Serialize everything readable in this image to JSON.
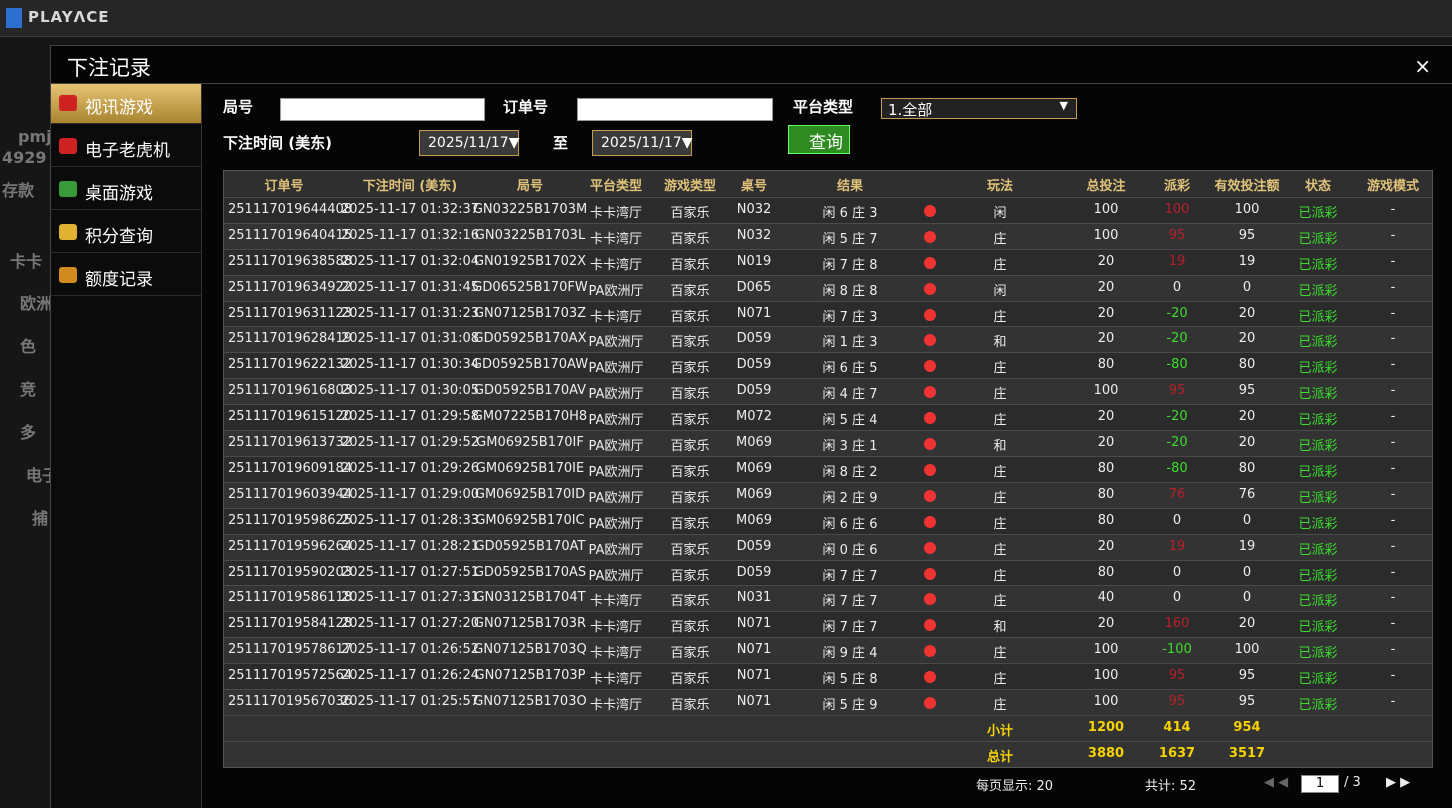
{
  "header": {
    "logo": "PLAYΛCE"
  },
  "background": {
    "fragments": [
      "pmj",
      "4929",
      "存款",
      "卡卡",
      "欧洲",
      "色",
      "竞",
      "多",
      "电子",
      "捕"
    ]
  },
  "modal": {
    "title": "下注记录",
    "close": "×"
  },
  "menu": [
    "视讯游戏",
    "电子老虎机",
    "桌面游戏",
    "积分查询",
    "额度记录"
  ],
  "filters": {
    "round_label": "局号",
    "order_label": "订单号",
    "platform_label": "平台类型",
    "platform_value": "1.全部",
    "time_label": "下注时间 (美东)",
    "date_from": "2025/11/17",
    "to": "至",
    "date_to": "2025/11/17",
    "query": "查询"
  },
  "table": {
    "columns": [
      "订单号",
      "下注时间 (美东)",
      "局号",
      "平台类型",
      "游戏类型",
      "桌号",
      "结果",
      "玩法",
      "总投注",
      "派彩",
      "有效投注额",
      "状态",
      "游戏模式"
    ],
    "rows": [
      [
        "251117019644408",
        "2025-11-17 01:32:37",
        "GN03225B1703M",
        "卡卡湾厅",
        "百家乐",
        "N032",
        "闲 6 庄 3",
        "闲",
        "100",
        "100",
        "100",
        "已派彩",
        "-"
      ],
      [
        "251117019640415",
        "2025-11-17 01:32:16",
        "GN03225B1703L",
        "卡卡湾厅",
        "百家乐",
        "N032",
        "闲 5 庄 7",
        "庄",
        "100",
        "95",
        "95",
        "已派彩",
        "-"
      ],
      [
        "251117019638588",
        "2025-11-17 01:32:04",
        "GN01925B1702X",
        "卡卡湾厅",
        "百家乐",
        "N019",
        "闲 7 庄 8",
        "庄",
        "20",
        "19",
        "19",
        "已派彩",
        "-"
      ],
      [
        "251117019634922",
        "2025-11-17 01:31:45",
        "GD06525B170FW",
        "PA欧洲厅",
        "百家乐",
        "D065",
        "闲 8 庄 8",
        "闲",
        "20",
        "0",
        "0",
        "已派彩",
        "-"
      ],
      [
        "251117019631123",
        "2025-11-17 01:31:23",
        "GN07125B1703Z",
        "卡卡湾厅",
        "百家乐",
        "N071",
        "闲 7 庄 3",
        "庄",
        "20",
        "-20",
        "20",
        "已派彩",
        "-"
      ],
      [
        "251117019628419",
        "2025-11-17 01:31:08",
        "GD05925B170AX",
        "PA欧洲厅",
        "百家乐",
        "D059",
        "闲 1 庄 3",
        "和",
        "20",
        "-20",
        "20",
        "已派彩",
        "-"
      ],
      [
        "251117019622132",
        "2025-11-17 01:30:34",
        "GD05925B170AW",
        "PA欧洲厅",
        "百家乐",
        "D059",
        "闲 6 庄 5",
        "庄",
        "80",
        "-80",
        "80",
        "已派彩",
        "-"
      ],
      [
        "251117019616803",
        "2025-11-17 01:30:05",
        "GD05925B170AV",
        "PA欧洲厅",
        "百家乐",
        "D059",
        "闲 4 庄 7",
        "庄",
        "100",
        "95",
        "95",
        "已派彩",
        "-"
      ],
      [
        "251117019615120",
        "2025-11-17 01:29:58",
        "GM07225B170H8",
        "PA欧洲厅",
        "百家乐",
        "M072",
        "闲 5 庄 4",
        "庄",
        "20",
        "-20",
        "20",
        "已派彩",
        "-"
      ],
      [
        "251117019613732",
        "2025-11-17 01:29:52",
        "GM06925B170IF",
        "PA欧洲厅",
        "百家乐",
        "M069",
        "闲 3 庄 1",
        "和",
        "20",
        "-20",
        "20",
        "已派彩",
        "-"
      ],
      [
        "251117019609184",
        "2025-11-17 01:29:26",
        "GM06925B170IE",
        "PA欧洲厅",
        "百家乐",
        "M069",
        "闲 8 庄 2",
        "庄",
        "80",
        "-80",
        "80",
        "已派彩",
        "-"
      ],
      [
        "251117019603944",
        "2025-11-17 01:29:00",
        "GM06925B170ID",
        "PA欧洲厅",
        "百家乐",
        "M069",
        "闲 2 庄 9",
        "庄",
        "80",
        "76",
        "76",
        "已派彩",
        "-"
      ],
      [
        "251117019598625",
        "2025-11-17 01:28:33",
        "GM06925B170IC",
        "PA欧洲厅",
        "百家乐",
        "M069",
        "闲 6 庄 6",
        "庄",
        "80",
        "0",
        "0",
        "已派彩",
        "-"
      ],
      [
        "251117019596264",
        "2025-11-17 01:28:21",
        "GD05925B170AT",
        "PA欧洲厅",
        "百家乐",
        "D059",
        "闲 0 庄 6",
        "庄",
        "20",
        "19",
        "19",
        "已派彩",
        "-"
      ],
      [
        "251117019590203",
        "2025-11-17 01:27:51",
        "GD05925B170AS",
        "PA欧洲厅",
        "百家乐",
        "D059",
        "闲 7 庄 7",
        "庄",
        "80",
        "0",
        "0",
        "已派彩",
        "-"
      ],
      [
        "251117019586118",
        "2025-11-17 01:27:31",
        "GN03125B1704T",
        "卡卡湾厅",
        "百家乐",
        "N031",
        "闲 7 庄 7",
        "庄",
        "40",
        "0",
        "0",
        "已派彩",
        "-"
      ],
      [
        "251117019584128",
        "2025-11-17 01:27:20",
        "GN07125B1703R",
        "卡卡湾厅",
        "百家乐",
        "N071",
        "闲 7 庄 7",
        "和",
        "20",
        "160",
        "20",
        "已派彩",
        "-"
      ],
      [
        "251117019578617",
        "2025-11-17 01:26:52",
        "GN07125B1703Q",
        "卡卡湾厅",
        "百家乐",
        "N071",
        "闲 9 庄 4",
        "庄",
        "100",
        "-100",
        "100",
        "已派彩",
        "-"
      ],
      [
        "251117019572564",
        "2025-11-17 01:26:24",
        "GN07125B1703P",
        "卡卡湾厅",
        "百家乐",
        "N071",
        "闲 5 庄 8",
        "庄",
        "100",
        "95",
        "95",
        "已派彩",
        "-"
      ],
      [
        "251117019567036",
        "2025-11-17 01:25:57",
        "GN07125B1703O",
        "卡卡湾厅",
        "百家乐",
        "N071",
        "闲 5 庄 9",
        "庄",
        "100",
        "95",
        "95",
        "已派彩",
        "-"
      ]
    ],
    "subtotal": {
      "label": "小计",
      "bet": "1200",
      "payout": "414",
      "valid": "954"
    },
    "total": {
      "label": "总计",
      "bet": "3880",
      "payout": "1637",
      "valid": "3517"
    }
  },
  "footer": {
    "page_size": "每页显示: 20",
    "count": "共计: 52",
    "page": "1",
    "pages": "/ 3"
  }
}
